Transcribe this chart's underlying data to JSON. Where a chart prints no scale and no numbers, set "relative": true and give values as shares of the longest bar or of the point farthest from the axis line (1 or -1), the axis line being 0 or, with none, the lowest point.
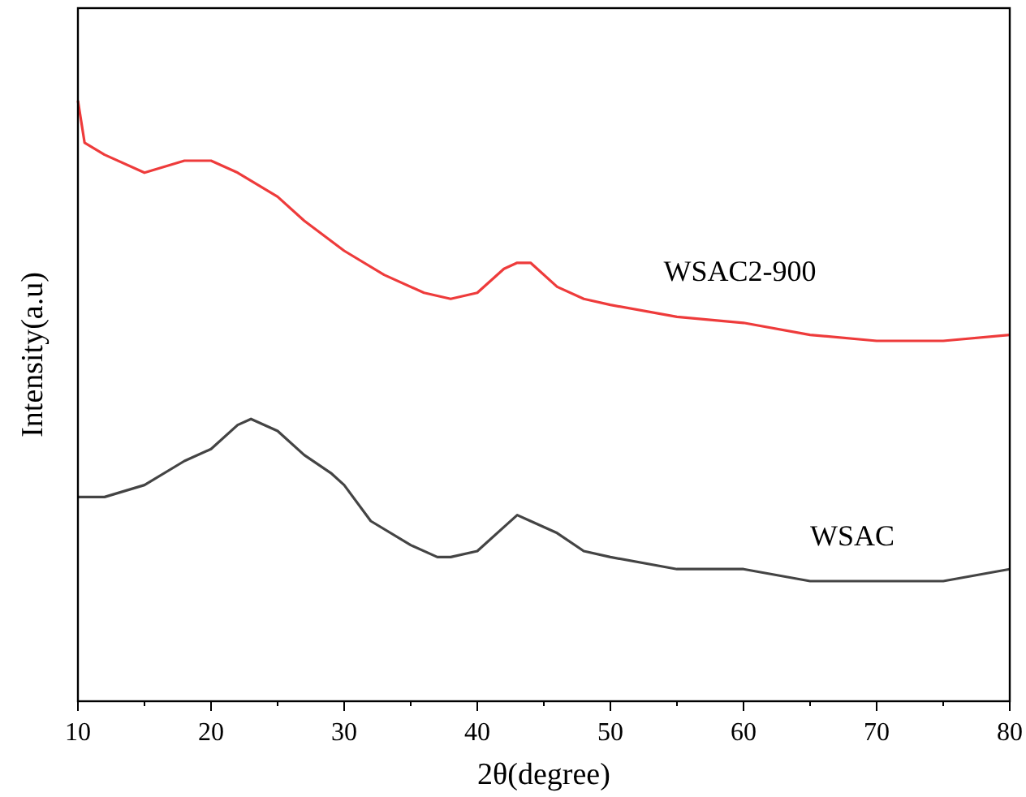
{
  "chart_data": {
    "type": "line",
    "relative": true,
    "xlabel": "2θ(degree)",
    "ylabel": "Intensity(a.u)",
    "xlim": [
      10,
      80
    ],
    "xticks": [
      10,
      20,
      30,
      40,
      50,
      60,
      70,
      80
    ],
    "grid": false,
    "marker": "none",
    "line_style": "solid",
    "series": [
      {
        "name": "WSAC2-900",
        "color": "#ee3b3b",
        "x": [
          10,
          10.5,
          12,
          15,
          18,
          20,
          22,
          25,
          27,
          30,
          33,
          36,
          38,
          40,
          42,
          43,
          44,
          46,
          48,
          50,
          55,
          60,
          65,
          70,
          75,
          80
        ],
        "values": [
          1.0,
          0.93,
          0.91,
          0.88,
          0.9,
          0.9,
          0.88,
          0.84,
          0.8,
          0.75,
          0.71,
          0.68,
          0.67,
          0.68,
          0.72,
          0.73,
          0.73,
          0.69,
          0.67,
          0.66,
          0.64,
          0.63,
          0.61,
          0.6,
          0.6,
          0.61
        ]
      },
      {
        "name": "WSAC",
        "color": "#444444",
        "x": [
          10,
          12,
          15,
          18,
          20,
          22,
          23,
          25,
          27,
          29,
          30,
          32,
          35,
          37,
          38,
          40,
          42,
          43,
          44,
          46,
          48,
          50,
          55,
          60,
          65,
          70,
          75,
          80
        ],
        "values": [
          0.34,
          0.34,
          0.36,
          0.4,
          0.42,
          0.46,
          0.47,
          0.45,
          0.41,
          0.38,
          0.36,
          0.3,
          0.26,
          0.24,
          0.24,
          0.25,
          0.29,
          0.31,
          0.3,
          0.28,
          0.25,
          0.24,
          0.22,
          0.22,
          0.2,
          0.2,
          0.2,
          0.22
        ]
      }
    ]
  }
}
